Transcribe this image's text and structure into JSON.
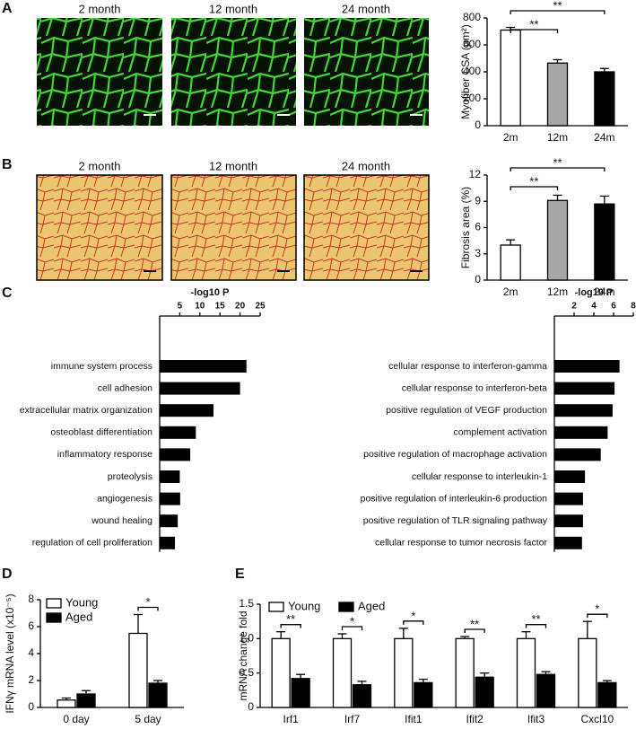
{
  "panel_labels": [
    "A",
    "B",
    "C",
    "D",
    "E"
  ],
  "image_labels": {
    "A": [
      "2 month",
      "12 month",
      "24 month"
    ],
    "B": [
      "2 month",
      "12 month",
      "24 month"
    ]
  },
  "chart_data": [
    {
      "type": "bar",
      "ylabel": "Myofiber CSA (μm²)",
      "categories": [
        "2m",
        "12m",
        "24m"
      ],
      "values": [
        710,
        465,
        400
      ],
      "errors": [
        20,
        25,
        25
      ],
      "colors": [
        "#ffffff",
        "#a6a6a6",
        "#000000"
      ],
      "ylim": [
        0,
        800
      ],
      "yticks": [
        0,
        200,
        400,
        600,
        800
      ],
      "significance": [
        "**",
        "**"
      ]
    },
    {
      "type": "bar",
      "ylabel": "Fibrosis area (%)",
      "categories": [
        "2m",
        "12m",
        "24m"
      ],
      "values": [
        4.0,
        9.1,
        8.7
      ],
      "errors": [
        0.6,
        0.6,
        0.9
      ],
      "colors": [
        "#ffffff",
        "#a6a6a6",
        "#000000"
      ],
      "ylim": [
        0,
        12
      ],
      "yticks": [
        0,
        3,
        6,
        9,
        12
      ],
      "significance": [
        "**",
        "**"
      ]
    },
    {
      "type": "barh",
      "xlabel": "-log10 P",
      "color": "#000000",
      "categories": [
        "immune system process",
        "cell adhesion",
        "extracellular matrix organization",
        "osteoblast differentiation",
        "inflammatory response",
        "proteolysis",
        "angiogenesis",
        "wound healing",
        "regulation of cell proliferation"
      ],
      "values": [
        21.6,
        20,
        13.4,
        9,
        7.6,
        5,
        5.1,
        4.5,
        3.8
      ],
      "xlim": [
        0,
        25
      ],
      "xticks": [
        5,
        10,
        15,
        20,
        25
      ]
    },
    {
      "type": "barh",
      "xlabel": "-log10 P",
      "color": "#000000",
      "categories": [
        "cellular response to interferon-gamma",
        "cellular response to interferon-beta",
        "positive regulation of VEGF production",
        "complement activation",
        "positive regulation of macrophage activation",
        "cellular response to interleukin-1",
        "positive regulation of interleukin-6 production",
        "positive regulation of TLR signaling pathway",
        "cellular response to tumor necrosis factor"
      ],
      "values": [
        6.6,
        6.1,
        5.9,
        5.4,
        4.7,
        3.1,
        2.9,
        2.9,
        2.8
      ],
      "xlim": [
        0,
        8
      ],
      "xticks": [
        2,
        4,
        6,
        8
      ]
    },
    {
      "type": "grouped_bar",
      "ylabel": "IFNγ mRNA level (x10⁻⁵)",
      "categories": [
        "0 day",
        "5 day"
      ],
      "series": [
        {
          "name": "Young",
          "color": "#ffffff",
          "values": [
            0.55,
            5.5
          ],
          "errors": [
            0.15,
            1.4
          ]
        },
        {
          "name": "Aged",
          "color": "#000000",
          "values": [
            1.0,
            1.8
          ],
          "errors": [
            0.25,
            0.2
          ]
        }
      ],
      "ylim": [
        0,
        8
      ],
      "yticks": [
        0,
        2,
        4,
        6,
        8
      ],
      "significance": [
        null,
        "*"
      ]
    },
    {
      "type": "grouped_bar",
      "ylabel": "mRNA change fold",
      "categories": [
        "Irf1",
        "Irf7",
        "Ifit1",
        "Ifit2",
        "Ifit3",
        "Cxcl10"
      ],
      "series": [
        {
          "name": "Young",
          "color": "#ffffff",
          "values": [
            1.0,
            1.0,
            1.0,
            1.0,
            1.0,
            1.0
          ],
          "errors": [
            0.1,
            0.07,
            0.15,
            0.03,
            0.1,
            0.25
          ]
        },
        {
          "name": "Aged",
          "color": "#000000",
          "values": [
            0.42,
            0.33,
            0.36,
            0.44,
            0.48,
            0.36
          ],
          "errors": [
            0.06,
            0.05,
            0.05,
            0.06,
            0.04,
            0.03
          ]
        }
      ],
      "ylim": [
        0,
        1.5
      ],
      "yticks": [
        0,
        0.5,
        {
          "value": 1,
          "label": "1.0"
        },
        1.5
      ],
      "significance": [
        "**",
        "*",
        "*",
        "**",
        "**",
        "*"
      ]
    }
  ]
}
